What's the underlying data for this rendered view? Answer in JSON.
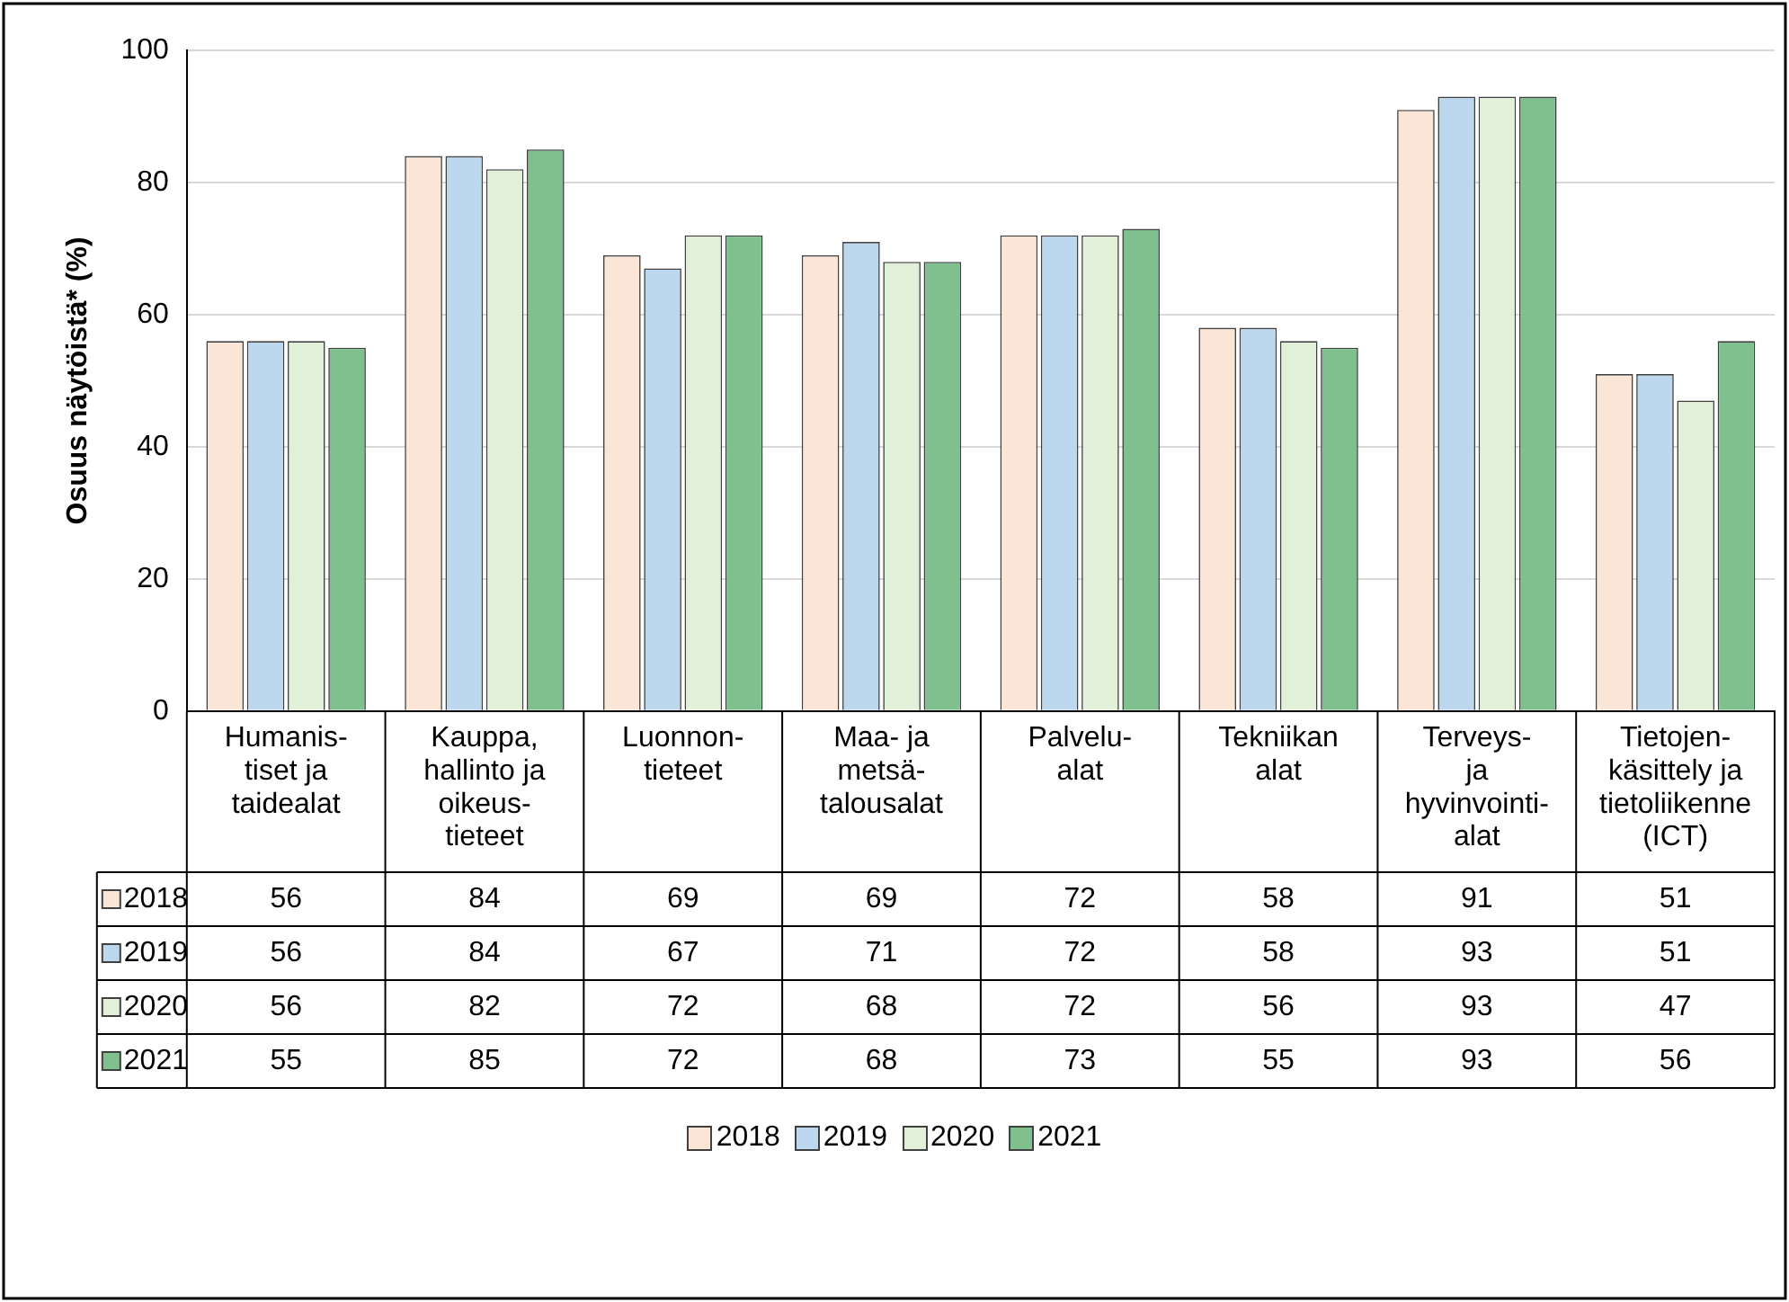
{
  "chart_data": {
    "type": "bar",
    "ylabel": "Osuus näytöistä* (%)",
    "categories": [
      "Humanis-\ntiset ja\ntaidealat",
      "Kauppa,\nhallinto ja\noikeus-\ntieteet",
      "Luonnon-\ntieteet",
      "Maa- ja\nmetsä-\ntalousalat",
      "Palvelu-\nalat",
      "Tekniikan\nalat",
      "Terveys-\nja\nhyvinvointi-\nalat",
      "Tietojen-\nkäsittely ja\ntietoliikenne\n(ICT)"
    ],
    "series": [
      {
        "name": "2018",
        "color": "#fbe5d6",
        "values": [
          56,
          84,
          69,
          69,
          72,
          58,
          91,
          51
        ]
      },
      {
        "name": "2019",
        "color": "#bdd7ee",
        "values": [
          56,
          84,
          67,
          71,
          72,
          58,
          93,
          51
        ]
      },
      {
        "name": "2020",
        "color": "#e2f0d9",
        "values": [
          56,
          82,
          72,
          68,
          72,
          56,
          93,
          47
        ]
      },
      {
        "name": "2021",
        "color": "#7fc08e",
        "values": [
          55,
          85,
          72,
          68,
          73,
          55,
          93,
          56
        ]
      }
    ],
    "ylim": [
      0,
      100
    ],
    "yticks": [
      0,
      20,
      40,
      60,
      80,
      100
    ],
    "grid": "y",
    "legend": "bottom",
    "data_labels": true
  }
}
